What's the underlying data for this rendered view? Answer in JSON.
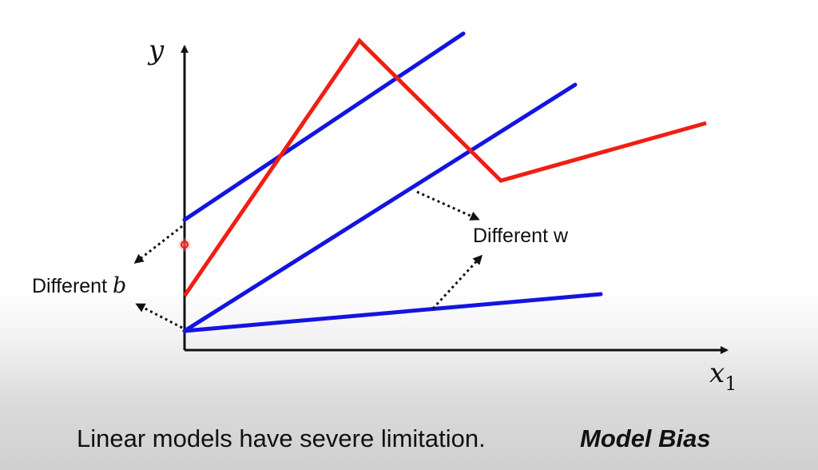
{
  "axes": {
    "y_label": "y",
    "x_label": "x",
    "x_subscript": "1"
  },
  "annotations": {
    "different_b_text": "Different ",
    "different_b_var": "b",
    "different_w": "Different w"
  },
  "caption": {
    "text": "Linear models have severe limitation.",
    "emphasis": "Model Bias"
  },
  "colors": {
    "linear_model_line": "#1414e0",
    "target_curve": "#f01e14",
    "axis": "#111111",
    "cursor": "#e02020"
  }
}
